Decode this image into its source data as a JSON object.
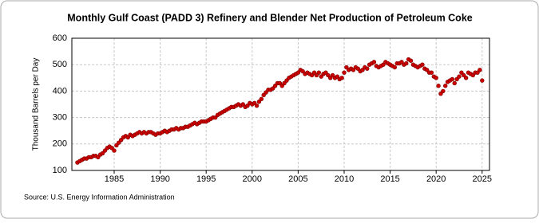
{
  "chart_data": {
    "type": "scatter",
    "title": "Monthly Gulf Coast (PADD 3) Refinery and Blender Net Production of Petroleum Coke",
    "y_label": "Thousand Barrels per Day",
    "source": "Source: U.S. Energy Information Administration",
    "color": "#cc0000",
    "grid": true,
    "xlim": [
      1980.4,
      2025.8
    ],
    "xticks": [
      1985,
      1990,
      1995,
      2000,
      2005,
      2010,
      2015,
      2020,
      2025
    ],
    "ylim": [
      100,
      600
    ],
    "yticks": [
      100,
      200,
      300,
      400,
      500,
      600
    ],
    "x": [
      1981,
      1981.25,
      1981.5,
      1981.75,
      1982,
      1982.25,
      1982.5,
      1982.75,
      1983,
      1983.25,
      1983.5,
      1983.75,
      1984,
      1984.25,
      1984.5,
      1984.75,
      1985,
      1985.25,
      1985.5,
      1985.75,
      1986,
      1986.25,
      1986.5,
      1986.75,
      1987,
      1987.25,
      1987.5,
      1987.75,
      1988,
      1988.25,
      1988.5,
      1988.75,
      1989,
      1989.25,
      1989.5,
      1989.75,
      1990,
      1990.25,
      1990.5,
      1990.75,
      1991,
      1991.25,
      1991.5,
      1991.75,
      1992,
      1992.25,
      1992.5,
      1992.75,
      1993,
      1993.25,
      1993.5,
      1993.75,
      1994,
      1994.25,
      1994.5,
      1994.75,
      1995,
      1995.25,
      1995.5,
      1995.75,
      1996,
      1996.25,
      1996.5,
      1996.75,
      1997,
      1997.25,
      1997.5,
      1997.75,
      1998,
      1998.25,
      1998.5,
      1998.75,
      1999,
      1999.25,
      1999.5,
      1999.75,
      2000,
      2000.25,
      2000.5,
      2000.75,
      2001,
      2001.25,
      2001.5,
      2001.75,
      2002,
      2002.25,
      2002.5,
      2002.75,
      2003,
      2003.25,
      2003.5,
      2003.75,
      2004,
      2004.25,
      2004.5,
      2004.75,
      2005,
      2005.25,
      2005.5,
      2005.75,
      2006,
      2006.25,
      2006.5,
      2006.75,
      2007,
      2007.25,
      2007.5,
      2007.75,
      2008,
      2008.25,
      2008.5,
      2008.75,
      2009,
      2009.25,
      2009.5,
      2009.75,
      2010,
      2010.25,
      2010.5,
      2010.75,
      2011,
      2011.25,
      2011.5,
      2011.75,
      2012,
      2012.25,
      2012.5,
      2012.75,
      2013,
      2013.25,
      2013.5,
      2013.75,
      2014,
      2014.25,
      2014.5,
      2014.75,
      2015,
      2015.25,
      2015.5,
      2015.75,
      2016,
      2016.25,
      2016.5,
      2016.75,
      2017,
      2017.25,
      2017.5,
      2017.75,
      2018,
      2018.25,
      2018.5,
      2018.75,
      2019,
      2019.25,
      2019.5,
      2019.75,
      2020,
      2020.25,
      2020.5,
      2020.75,
      2021,
      2021.25,
      2021.5,
      2021.75,
      2022,
      2022.25,
      2022.5,
      2022.75,
      2023,
      2023.25,
      2023.5,
      2023.75,
      2024,
      2024.25,
      2024.5,
      2024.75,
      2025
    ],
    "values": [
      130,
      135,
      140,
      145,
      145,
      150,
      150,
      155,
      155,
      150,
      160,
      165,
      175,
      185,
      190,
      185,
      175,
      195,
      205,
      215,
      225,
      230,
      225,
      235,
      230,
      235,
      240,
      245,
      240,
      245,
      240,
      245,
      245,
      240,
      235,
      240,
      240,
      245,
      250,
      245,
      250,
      255,
      255,
      260,
      255,
      260,
      260,
      265,
      265,
      270,
      275,
      280,
      275,
      280,
      285,
      285,
      285,
      290,
      295,
      300,
      300,
      310,
      315,
      320,
      325,
      330,
      335,
      340,
      340,
      345,
      350,
      345,
      350,
      340,
      345,
      355,
      350,
      355,
      345,
      360,
      370,
      385,
      395,
      405,
      405,
      410,
      420,
      430,
      430,
      420,
      430,
      440,
      450,
      455,
      460,
      465,
      470,
      480,
      475,
      465,
      470,
      465,
      460,
      470,
      460,
      470,
      455,
      465,
      470,
      460,
      450,
      460,
      450,
      455,
      445,
      450,
      470,
      490,
      480,
      485,
      480,
      490,
      485,
      475,
      480,
      490,
      485,
      500,
      505,
      510,
      495,
      490,
      495,
      500,
      510,
      505,
      500,
      495,
      490,
      505,
      505,
      510,
      500,
      505,
      520,
      515,
      500,
      495,
      490,
      495,
      500,
      485,
      480,
      470,
      470,
      455,
      450,
      420,
      390,
      400,
      420,
      435,
      440,
      445,
      430,
      445,
      455,
      470,
      460,
      450,
      470,
      465,
      460,
      470,
      470,
      480,
      440
    ]
  }
}
